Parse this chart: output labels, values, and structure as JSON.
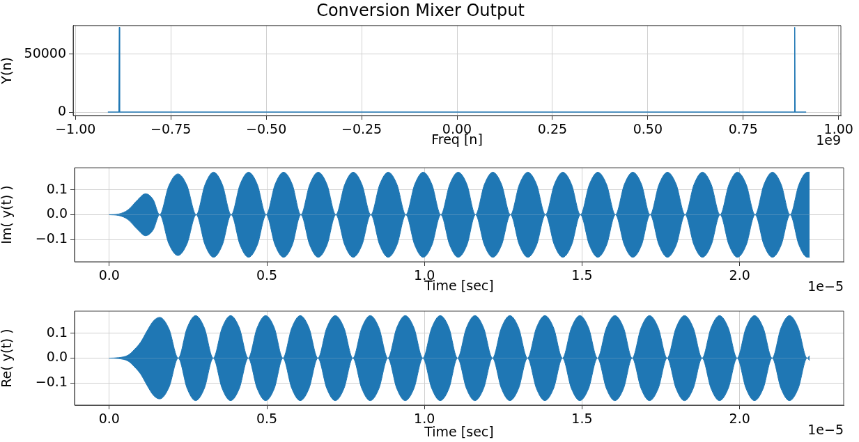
{
  "chart_data": [
    {
      "type": "line",
      "title": "Conversion Mixer Output",
      "xlabel": "Freq [n]",
      "ylabel": "Y(n)",
      "x": [
        -0.915,
        -0.886,
        -0.885,
        -0.884,
        0.884,
        0.885,
        0.886,
        0.915
      ],
      "series": [
        {
          "color": "#1f77b4",
          "values": [
            0,
            0,
            73000,
            0,
            0,
            73000,
            0,
            0
          ]
        }
      ],
      "xlim": [
        -1.006,
        1.006
      ],
      "ylim": [
        -3000,
        74700
      ],
      "xticks": [
        {
          "value": -1,
          "label": "−1.00"
        },
        {
          "value": -0.75,
          "label": "−0.75"
        },
        {
          "value": -0.5,
          "label": "−0.50"
        },
        {
          "value": -0.25,
          "label": "−0.25"
        },
        {
          "value": 0,
          "label": "0.00"
        },
        {
          "value": 0.25,
          "label": "0.25"
        },
        {
          "value": 0.5,
          "label": "0.50"
        },
        {
          "value": 0.75,
          "label": "0.75"
        },
        {
          "value": 1,
          "label": "1.00"
        }
      ],
      "yticks": [
        0,
        50000
      ],
      "grid": true,
      "annotations": [
        "1e9"
      ]
    },
    {
      "type": "area",
      "xlabel": "Time [sec]",
      "ylabel": "Im( y(t) )",
      "x": [
        0,
        0.03,
        0.06,
        0.09,
        0.115,
        0.14,
        0.16,
        0.189,
        0.218,
        0.247,
        0.276,
        0.304,
        0.331,
        0.359,
        0.387,
        0.415,
        0.442,
        0.47,
        0.498,
        0.526,
        0.553,
        0.581,
        0.608,
        0.636,
        0.663,
        0.691,
        0.719,
        0.747,
        0.774,
        0.802,
        0.83,
        0.858,
        0.885,
        0.913,
        0.941,
        0.969,
        0.996,
        1.024,
        1.052,
        1.08,
        1.107,
        1.135,
        1.162,
        1.19,
        1.217,
        1.245,
        1.273,
        1.301,
        1.328,
        1.356,
        1.384,
        1.412,
        1.439,
        1.467,
        1.495,
        1.523,
        1.55,
        1.578,
        1.606,
        1.634,
        1.661,
        1.689,
        1.716,
        1.744,
        1.771,
        1.799,
        1.827,
        1.855,
        1.882,
        1.91,
        1.938,
        1.966,
        1.993,
        2.021,
        2.049,
        2.077,
        2.104,
        2.132,
        2.16,
        2.188,
        2.215,
        2.222
      ],
      "series": [
        {
          "color": "#1f77b4",
          "values": [
            0,
            0.003,
            0.02,
            0.06,
            0.085,
            0.06,
            0,
            0.117,
            0.165,
            0.117,
            0,
            0.122,
            0.172,
            0.122,
            0,
            0.122,
            0.172,
            0.122,
            0,
            0.122,
            0.172,
            0.122,
            0,
            0.122,
            0.172,
            0.122,
            0,
            0.122,
            0.172,
            0.122,
            0,
            0.122,
            0.172,
            0.122,
            0,
            0.122,
            0.172,
            0.122,
            0,
            0.122,
            0.172,
            0.122,
            0,
            0.122,
            0.172,
            0.122,
            0,
            0.122,
            0.172,
            0.122,
            0,
            0.122,
            0.172,
            0.122,
            0,
            0.122,
            0.172,
            0.122,
            0,
            0.122,
            0.172,
            0.122,
            0,
            0.122,
            0.172,
            0.122,
            0,
            0.122,
            0.172,
            0.122,
            0,
            0.122,
            0.172,
            0.122,
            0,
            0.122,
            0.172,
            0.122,
            0,
            0.122,
            0.172,
            0.172
          ]
        },
        {
          "color": "#1f77b4",
          "values": [
            0,
            -0.003,
            -0.02,
            -0.06,
            -0.085,
            -0.06,
            0,
            -0.117,
            -0.165,
            -0.117,
            0,
            -0.122,
            -0.172,
            -0.122,
            0,
            -0.122,
            -0.172,
            -0.122,
            0,
            -0.122,
            -0.172,
            -0.122,
            0,
            -0.122,
            -0.172,
            -0.122,
            0,
            -0.122,
            -0.172,
            -0.122,
            0,
            -0.122,
            -0.172,
            -0.122,
            0,
            -0.122,
            -0.172,
            -0.122,
            0,
            -0.122,
            -0.172,
            -0.122,
            0,
            -0.122,
            -0.172,
            -0.122,
            0,
            -0.122,
            -0.172,
            -0.122,
            0,
            -0.122,
            -0.172,
            -0.122,
            0,
            -0.122,
            -0.172,
            -0.122,
            0,
            -0.122,
            -0.172,
            -0.122,
            0,
            -0.122,
            -0.172,
            -0.122,
            0,
            -0.122,
            -0.172,
            -0.122,
            0,
            -0.122,
            -0.172,
            -0.122,
            0,
            -0.122,
            -0.172,
            -0.122,
            0,
            -0.122,
            -0.172,
            -0.172
          ]
        }
      ],
      "xlim": [
        -0.11,
        2.33
      ],
      "ylim": [
        -0.19,
        0.19
      ],
      "xticks": [
        {
          "value": 0,
          "label": "0.0"
        },
        {
          "value": 0.5,
          "label": "0.5"
        },
        {
          "value": 1,
          "label": "1.0"
        },
        {
          "value": 1.5,
          "label": "1.5"
        },
        {
          "value": 2,
          "label": "2.0"
        }
      ],
      "yticks": [
        {
          "value": -0.1,
          "label": "−0.1"
        },
        {
          "value": 0,
          "label": "0.0"
        },
        {
          "value": 0.1,
          "label": "0.1"
        }
      ],
      "grid": true,
      "annotations": [
        "1e−5"
      ]
    },
    {
      "type": "area",
      "xlabel": "Time [sec]",
      "ylabel": "Re( y(t) )",
      "x": [
        0,
        0.03,
        0.06,
        0.08,
        0.1,
        0.12,
        0.14,
        0.16,
        0.19,
        0.219,
        0.247,
        0.274,
        0.302,
        0.33,
        0.358,
        0.385,
        0.413,
        0.441,
        0.469,
        0.496,
        0.524,
        0.551,
        0.579,
        0.606,
        0.634,
        0.662,
        0.69,
        0.717,
        0.745,
        0.773,
        0.801,
        0.828,
        0.856,
        0.884,
        0.912,
        0.939,
        0.967,
        0.995,
        1.023,
        1.05,
        1.078,
        1.105,
        1.133,
        1.16,
        1.188,
        1.216,
        1.244,
        1.271,
        1.299,
        1.327,
        1.355,
        1.382,
        1.41,
        1.438,
        1.466,
        1.493,
        1.521,
        1.549,
        1.577,
        1.604,
        1.632,
        1.659,
        1.687,
        1.714,
        1.742,
        1.77,
        1.798,
        1.825,
        1.853,
        1.881,
        1.909,
        1.936,
        1.964,
        1.992,
        2.02,
        2.047,
        2.075,
        2.103,
        2.131,
        2.158,
        2.186,
        2.214,
        2.222
      ],
      "series": [
        {
          "color": "#1f77b4",
          "values": [
            0,
            0.002,
            0.012,
            0.035,
            0.065,
            0.11,
            0.15,
            0.165,
            0.117,
            0,
            0.122,
            0.172,
            0.122,
            0,
            0.122,
            0.172,
            0.122,
            0,
            0.122,
            0.172,
            0.122,
            0,
            0.122,
            0.172,
            0.122,
            0,
            0.122,
            0.172,
            0.122,
            0,
            0.122,
            0.172,
            0.122,
            0,
            0.122,
            0.172,
            0.122,
            0,
            0.122,
            0.172,
            0.122,
            0,
            0.122,
            0.172,
            0.122,
            0,
            0.122,
            0.172,
            0.122,
            0,
            0.122,
            0.172,
            0.122,
            0,
            0.122,
            0.172,
            0.122,
            0,
            0.122,
            0.172,
            0.122,
            0,
            0.122,
            0.172,
            0.122,
            0,
            0.122,
            0.172,
            0.122,
            0,
            0.122,
            0.172,
            0.122,
            0,
            0.122,
            0.172,
            0.122,
            0,
            0.122,
            0.172,
            0.122,
            0,
            0.01
          ]
        },
        {
          "color": "#1f77b4",
          "values": [
            0,
            -0.002,
            -0.012,
            -0.035,
            -0.065,
            -0.11,
            -0.15,
            -0.165,
            -0.117,
            0,
            -0.122,
            -0.172,
            -0.122,
            0,
            -0.122,
            -0.172,
            -0.122,
            0,
            -0.122,
            -0.172,
            -0.122,
            0,
            -0.122,
            -0.172,
            -0.122,
            0,
            -0.122,
            -0.172,
            -0.122,
            0,
            -0.122,
            -0.172,
            -0.122,
            0,
            -0.122,
            -0.172,
            -0.122,
            0,
            -0.122,
            -0.172,
            -0.122,
            0,
            -0.122,
            -0.172,
            -0.122,
            0,
            -0.122,
            -0.172,
            -0.122,
            0,
            -0.122,
            -0.172,
            -0.122,
            0,
            -0.122,
            -0.172,
            -0.122,
            0,
            -0.122,
            -0.172,
            -0.122,
            0,
            -0.122,
            -0.172,
            -0.122,
            0,
            -0.122,
            -0.172,
            -0.122,
            0,
            -0.122,
            -0.172,
            -0.122,
            0,
            -0.122,
            -0.172,
            -0.122,
            0,
            -0.122,
            -0.172,
            -0.122,
            0,
            -0.01
          ]
        }
      ],
      "xlim": [
        -0.11,
        2.33
      ],
      "ylim": [
        -0.19,
        0.19
      ],
      "xticks": [
        {
          "value": 0,
          "label": "0.0"
        },
        {
          "value": 0.5,
          "label": "0.5"
        },
        {
          "value": 1,
          "label": "1.0"
        },
        {
          "value": 1.5,
          "label": "1.5"
        },
        {
          "value": 2,
          "label": "2.0"
        }
      ],
      "yticks": [
        {
          "value": -0.1,
          "label": "−0.1"
        },
        {
          "value": 0,
          "label": "0.0"
        },
        {
          "value": 0.1,
          "label": "0.1"
        }
      ],
      "grid": true,
      "annotations": [
        "1e−5"
      ]
    }
  ]
}
